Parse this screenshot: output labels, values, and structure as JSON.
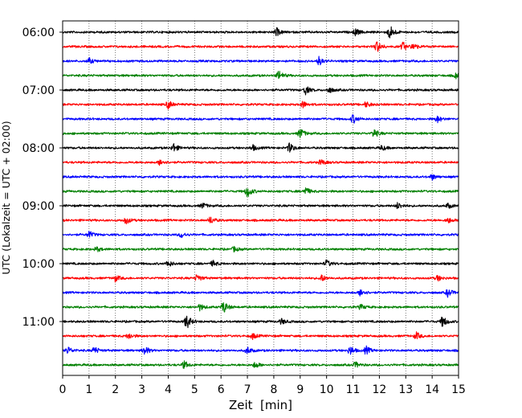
{
  "chart_data": {
    "type": "line",
    "title": "",
    "xlabel": "Zeit  [min]",
    "ylabel": "UTC (Lokalzeit = UTC + 02:00)",
    "xlim": [
      0,
      15
    ],
    "x_ticks": [
      "0",
      "1",
      "2",
      "3",
      "4",
      "5",
      "6",
      "7",
      "8",
      "9",
      "10",
      "11",
      "12",
      "13",
      "14",
      "15"
    ],
    "y_ticks": [
      "06:00",
      "07:00",
      "08:00",
      "09:00",
      "10:00",
      "11:00"
    ],
    "grid": "vertical-dotted",
    "row_minutes": 15,
    "start_time": "06:00",
    "traces": [
      {
        "time": "06:00",
        "color": "#000000",
        "events": [
          [
            8.1,
            0.5
          ],
          [
            11.1,
            0.45
          ],
          [
            12.4,
            0.9
          ]
        ]
      },
      {
        "time": "06:15",
        "color": "#ff0000",
        "events": [
          [
            11.9,
            0.75
          ],
          [
            12.9,
            0.55
          ],
          [
            13.3,
            0.4
          ]
        ]
      },
      {
        "time": "06:30",
        "color": "#0000ff",
        "events": [
          [
            1.0,
            0.35
          ],
          [
            9.7,
            0.55
          ]
        ]
      },
      {
        "time": "06:45",
        "color": "#008000",
        "events": [
          [
            8.2,
            0.6
          ],
          [
            14.9,
            0.35
          ]
        ]
      },
      {
        "time": "07:00",
        "color": "#000000",
        "events": [
          [
            9.2,
            0.55
          ],
          [
            10.1,
            0.35
          ]
        ]
      },
      {
        "time": "07:15",
        "color": "#ff0000",
        "events": [
          [
            4.0,
            0.5
          ],
          [
            9.1,
            0.4
          ],
          [
            11.5,
            0.35
          ]
        ]
      },
      {
        "time": "07:30",
        "color": "#0000ff",
        "events": [
          [
            11.0,
            0.55
          ],
          [
            14.2,
            0.4
          ]
        ]
      },
      {
        "time": "07:45",
        "color": "#008000",
        "events": [
          [
            9.0,
            0.65
          ],
          [
            11.8,
            0.55
          ]
        ]
      },
      {
        "time": "08:00",
        "color": "#000000",
        "events": [
          [
            4.2,
            0.55
          ],
          [
            7.2,
            0.35
          ],
          [
            8.6,
            0.6
          ],
          [
            12.1,
            0.3
          ]
        ]
      },
      {
        "time": "08:15",
        "color": "#ff0000",
        "events": [
          [
            3.7,
            0.4
          ],
          [
            9.8,
            0.35
          ]
        ]
      },
      {
        "time": "08:30",
        "color": "#0000ff",
        "events": [
          [
            14.0,
            0.35
          ]
        ]
      },
      {
        "time": "08:45",
        "color": "#008000",
        "events": [
          [
            7.0,
            0.75
          ],
          [
            9.2,
            0.5
          ]
        ]
      },
      {
        "time": "09:00",
        "color": "#000000",
        "events": [
          [
            5.3,
            0.35
          ],
          [
            12.7,
            0.4
          ],
          [
            14.6,
            0.3
          ]
        ]
      },
      {
        "time": "09:15",
        "color": "#ff0000",
        "events": [
          [
            2.4,
            0.45
          ],
          [
            5.6,
            0.45
          ],
          [
            14.6,
            0.35
          ]
        ]
      },
      {
        "time": "09:30",
        "color": "#0000ff",
        "events": [
          [
            1.0,
            0.45
          ],
          [
            4.5,
            0.35
          ]
        ]
      },
      {
        "time": "09:45",
        "color": "#008000",
        "events": [
          [
            1.3,
            0.3
          ],
          [
            6.5,
            0.3
          ]
        ]
      },
      {
        "time": "10:00",
        "color": "#000000",
        "events": [
          [
            4.0,
            0.4
          ],
          [
            5.7,
            0.35
          ],
          [
            10.0,
            0.45
          ]
        ]
      },
      {
        "time": "10:15",
        "color": "#ff0000",
        "events": [
          [
            2.0,
            0.4
          ],
          [
            5.1,
            0.45
          ],
          [
            9.8,
            0.45
          ],
          [
            14.2,
            0.35
          ]
        ]
      },
      {
        "time": "10:30",
        "color": "#0000ff",
        "events": [
          [
            11.3,
            0.5
          ],
          [
            14.6,
            0.5
          ]
        ]
      },
      {
        "time": "10:45",
        "color": "#008000",
        "events": [
          [
            5.2,
            0.4
          ],
          [
            6.1,
            0.75
          ],
          [
            11.3,
            0.3
          ]
        ]
      },
      {
        "time": "11:00",
        "color": "#000000",
        "events": [
          [
            4.7,
            0.9
          ],
          [
            8.3,
            0.35
          ],
          [
            14.4,
            0.7
          ]
        ]
      },
      {
        "time": "11:15",
        "color": "#ff0000",
        "events": [
          [
            2.5,
            0.4
          ],
          [
            7.2,
            0.35
          ],
          [
            13.4,
            0.45
          ]
        ]
      },
      {
        "time": "11:30",
        "color": "#0000ff",
        "events": [
          [
            0.2,
            0.45
          ],
          [
            1.2,
            0.45
          ],
          [
            3.1,
            0.55
          ],
          [
            7.0,
            0.45
          ],
          [
            10.9,
            0.55
          ],
          [
            11.5,
            0.5
          ]
        ]
      },
      {
        "time": "11:45",
        "color": "#008000",
        "events": [
          [
            4.6,
            0.45
          ],
          [
            7.3,
            0.4
          ],
          [
            11.1,
            0.35
          ]
        ]
      }
    ]
  }
}
